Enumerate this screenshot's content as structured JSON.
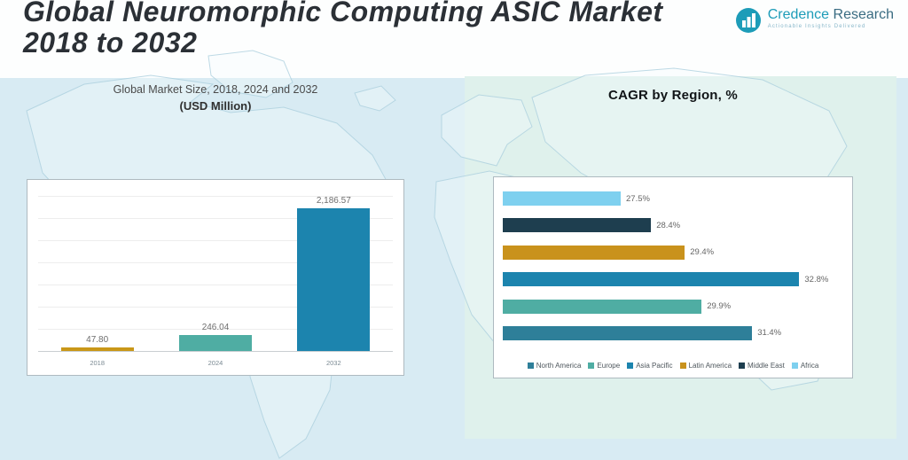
{
  "header": {
    "title_line1": "Global Neuromorphic Computing ASIC Market",
    "title_line2": "2018 to 2032",
    "logo": {
      "brand_main": "Credence",
      "brand_sub": " Research",
      "tagline": "Actionable Insights Delivered"
    }
  },
  "left_panel": {
    "title": "Global Market Size, 2018, 2024 and 2032",
    "subtitle": "(USD Million)"
  },
  "right_panel": {
    "title": "CAGR by Region, %"
  },
  "chart_data": [
    {
      "type": "bar",
      "title": "Global Market Size, 2018, 2024 and 2032 (USD Million)",
      "categories": [
        "2018",
        "2024",
        "2032"
      ],
      "values": [
        47.8,
        246.04,
        2186.57
      ],
      "value_labels": [
        "47.80",
        "246.04",
        "2,186.57"
      ],
      "colors": [
        "#c99718",
        "#4fada3",
        "#1c84ae"
      ],
      "ylim": [
        0,
        2400
      ],
      "grid": true,
      "legend_position": "none",
      "xlabel": "",
      "ylabel": ""
    },
    {
      "type": "bar",
      "orientation": "horizontal",
      "title": "CAGR by Region, %",
      "categories": [
        "Africa",
        "Middle East",
        "Latin America",
        "Asia Pacific",
        "Europe",
        "North America"
      ],
      "values": [
        27.5,
        28.4,
        29.4,
        32.8,
        29.9,
        31.4
      ],
      "value_labels": [
        "27.5%",
        "28.4%",
        "29.4%",
        "32.8%",
        "29.9%",
        "31.4%"
      ],
      "colors": [
        "#7ed0ef",
        "#1e3e4f",
        "#c9921c",
        "#1c84ae",
        "#4fada3",
        "#2e7f99"
      ],
      "xlim": [
        24,
        34
      ],
      "grid": false,
      "legend": [
        "North America",
        "Europe",
        "Asia Pacific",
        "Latin America",
        "Middle East",
        "Africa"
      ],
      "legend_colors": [
        "#2e7f99",
        "#4fada3",
        "#1c84ae",
        "#c9921c",
        "#1e3e4f",
        "#7ed0ef"
      ],
      "legend_position": "bottom"
    }
  ],
  "brand_colors": {
    "teal": "#1d9cb8",
    "panel_blue": "#d8ebf3",
    "panel_mint": "#dff1ec"
  }
}
